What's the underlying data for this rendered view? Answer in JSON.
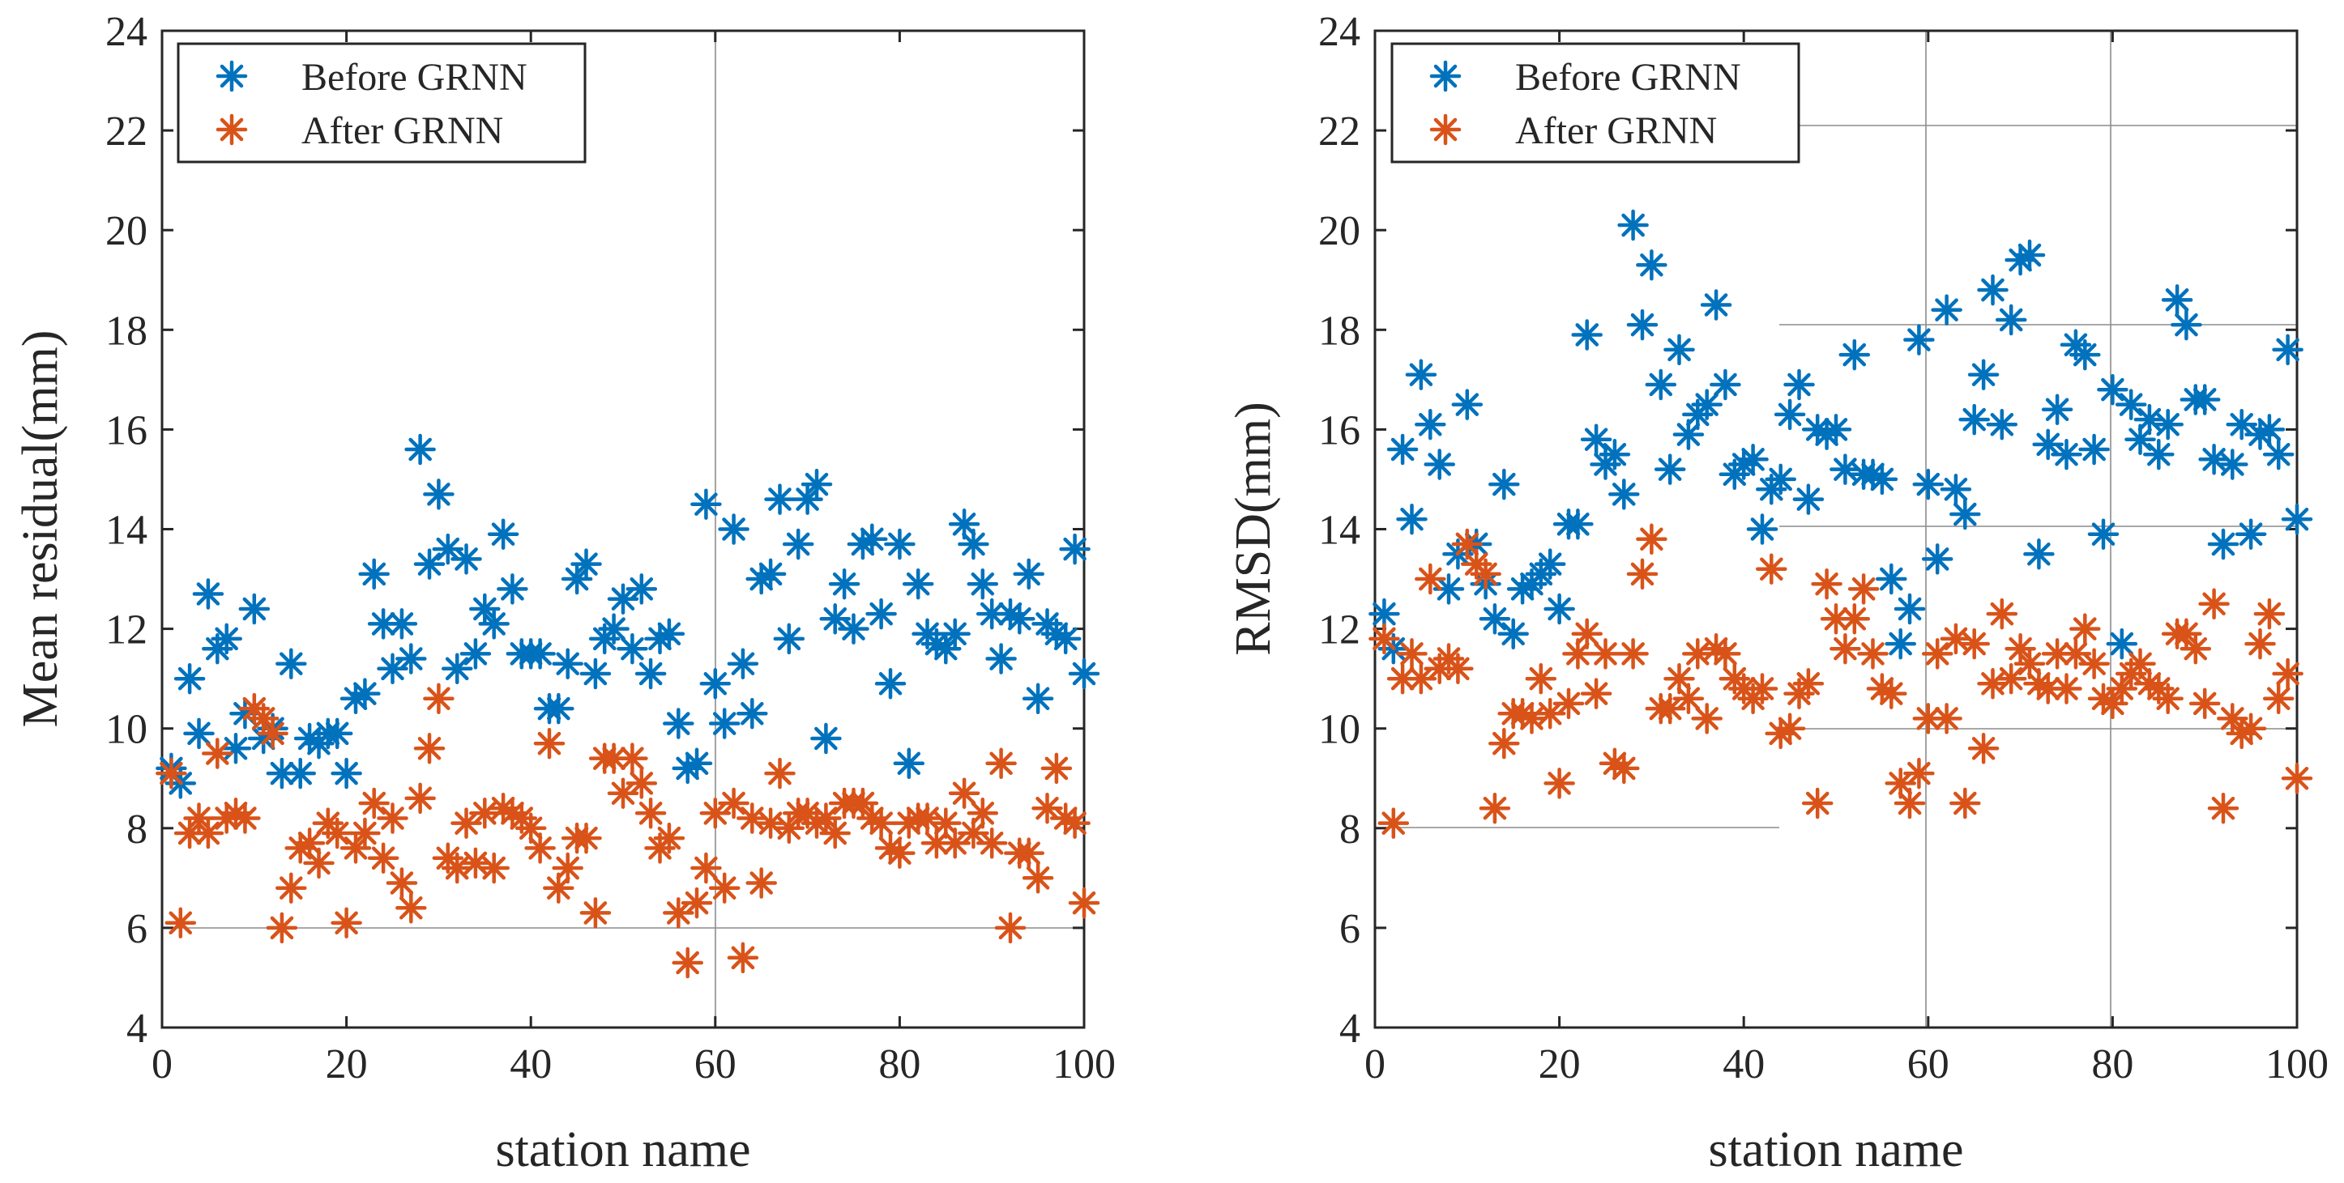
{
  "chart_data": [
    {
      "type": "scatter",
      "ylabel": "Mean residual(mm)",
      "xlabel": "station name",
      "xlim": [
        0,
        100
      ],
      "ylim": [
        4,
        24
      ],
      "xticks": [
        "0",
        "20",
        "40",
        "60",
        "80",
        "100"
      ],
      "yticks": [
        "4",
        "6",
        "8",
        "10",
        "12",
        "14",
        "16",
        "18",
        "20",
        "22",
        "24"
      ],
      "legend": {
        "position": "top-left",
        "entries": [
          "Before GRNN",
          "After GRNN"
        ]
      },
      "series": [
        {
          "name": "Before GRNN",
          "color": "#0072BD",
          "x": [
            1,
            2,
            3,
            4,
            5,
            6,
            7,
            8,
            9,
            10,
            11,
            12,
            13,
            14,
            15,
            16,
            17,
            18,
            19,
            20,
            21,
            22,
            23,
            24,
            25,
            26,
            27,
            28,
            29,
            30,
            31,
            32,
            33,
            34,
            35,
            36,
            37,
            38,
            39,
            40,
            41,
            42,
            43,
            44,
            45,
            46,
            47,
            48,
            49,
            50,
            51,
            52,
            53,
            54,
            55,
            56,
            57,
            58,
            59,
            60,
            61,
            62,
            63,
            64,
            65,
            66,
            67,
            68,
            69,
            70,
            71,
            72,
            73,
            74,
            75,
            76,
            77,
            78,
            79,
            80,
            81,
            82,
            83,
            84,
            85,
            86,
            87,
            88,
            89,
            90,
            91,
            92,
            93,
            94,
            95,
            96,
            97,
            98,
            99,
            100
          ],
          "y": [
            9.2,
            8.9,
            11.0,
            9.9,
            12.7,
            11.6,
            11.8,
            9.6,
            10.3,
            12.4,
            9.8,
            10.0,
            9.1,
            11.3,
            9.1,
            9.8,
            9.7,
            9.9,
            9.9,
            9.1,
            10.6,
            10.7,
            13.1,
            12.1,
            11.2,
            12.1,
            11.4,
            15.6,
            13.3,
            14.7,
            13.6,
            11.2,
            13.4,
            11.5,
            12.4,
            12.1,
            13.9,
            12.8,
            11.5,
            11.5,
            11.5,
            10.4,
            10.4,
            11.3,
            13.0,
            13.3,
            11.1,
            11.8,
            12.0,
            12.6,
            11.6,
            12.8,
            11.1,
            11.8,
            11.9,
            10.1,
            9.2,
            9.3,
            14.5,
            10.9,
            10.1,
            14.0,
            11.3,
            10.3,
            13.0,
            13.1,
            14.6,
            11.8,
            13.7,
            14.6,
            14.9,
            9.8,
            12.2,
            12.9,
            12.0,
            13.7,
            13.8,
            12.3,
            10.9,
            13.7,
            9.3,
            12.9,
            11.9,
            11.7,
            11.6,
            11.9,
            14.1,
            13.7,
            12.9,
            12.3,
            11.4,
            12.3,
            12.2,
            13.1,
            10.6,
            12.1,
            11.9,
            11.8,
            13.6,
            11.1
          ]
        },
        {
          "name": "After GRNN",
          "color": "#D95319",
          "x": [
            1,
            2,
            3,
            4,
            5,
            6,
            7,
            8,
            9,
            10,
            11,
            12,
            13,
            14,
            15,
            16,
            17,
            18,
            19,
            20,
            21,
            22,
            23,
            24,
            25,
            26,
            27,
            28,
            29,
            30,
            31,
            32,
            33,
            34,
            35,
            36,
            37,
            38,
            39,
            40,
            41,
            42,
            43,
            44,
            45,
            46,
            47,
            48,
            49,
            50,
            51,
            52,
            53,
            54,
            55,
            56,
            57,
            58,
            59,
            60,
            61,
            62,
            63,
            64,
            65,
            66,
            67,
            68,
            69,
            70,
            71,
            72,
            73,
            74,
            75,
            76,
            77,
            78,
            79,
            80,
            81,
            82,
            83,
            84,
            85,
            86,
            87,
            88,
            89,
            90,
            91,
            92,
            93,
            94,
            95,
            96,
            97,
            98,
            99,
            100
          ],
          "y": [
            9.1,
            6.1,
            7.9,
            8.2,
            7.9,
            9.5,
            8.2,
            8.3,
            8.2,
            10.4,
            10.2,
            9.9,
            6.0,
            6.8,
            7.6,
            7.7,
            7.3,
            8.1,
            7.9,
            6.1,
            7.6,
            7.9,
            8.5,
            7.4,
            8.2,
            6.9,
            6.4,
            8.6,
            9.6,
            10.6,
            7.4,
            7.2,
            8.1,
            7.3,
            8.3,
            7.2,
            8.4,
            8.3,
            8.2,
            8.0,
            7.6,
            9.7,
            6.8,
            7.2,
            7.8,
            7.8,
            6.3,
            9.4,
            9.4,
            8.7,
            9.4,
            8.9,
            8.3,
            7.6,
            7.8,
            6.3,
            5.3,
            6.5,
            7.2,
            8.3,
            6.8,
            8.5,
            5.4,
            8.2,
            6.9,
            8.1,
            9.1,
            8.0,
            8.3,
            8.3,
            8.1,
            8.2,
            7.9,
            8.5,
            8.5,
            8.5,
            8.2,
            8.1,
            7.6,
            7.5,
            8.1,
            8.2,
            8.2,
            7.7,
            8.1,
            7.7,
            8.7,
            7.9,
            8.3,
            7.7,
            9.3,
            6.0,
            7.5,
            7.5,
            7.0,
            8.4,
            9.2,
            8.2,
            8.1,
            6.5
          ]
        }
      ]
    },
    {
      "type": "scatter",
      "ylabel": "RMSD(mm)",
      "xlabel": "station name",
      "xlim": [
        0,
        100
      ],
      "ylim": [
        4,
        24
      ],
      "xticks": [
        "0",
        "20",
        "40",
        "60",
        "80",
        "100"
      ],
      "yticks": [
        "4",
        "6",
        "8",
        "10",
        "12",
        "14",
        "16",
        "18",
        "20",
        "22",
        "24"
      ],
      "legend": {
        "position": "top-left",
        "entries": [
          "Before GRNN",
          "After GRNN"
        ]
      },
      "series": [
        {
          "name": "Before GRNN",
          "color": "#0072BD",
          "x": [
            1,
            2,
            3,
            4,
            5,
            6,
            7,
            8,
            9,
            10,
            11,
            12,
            13,
            14,
            15,
            16,
            17,
            18,
            19,
            20,
            21,
            22,
            23,
            24,
            25,
            26,
            27,
            28,
            29,
            30,
            31,
            32,
            33,
            34,
            35,
            36,
            37,
            38,
            39,
            40,
            41,
            42,
            43,
            44,
            45,
            46,
            47,
            48,
            49,
            50,
            51,
            52,
            53,
            54,
            55,
            56,
            57,
            58,
            59,
            60,
            61,
            62,
            63,
            64,
            65,
            66,
            67,
            68,
            69,
            70,
            71,
            72,
            73,
            74,
            75,
            76,
            77,
            78,
            79,
            80,
            81,
            82,
            83,
            84,
            85,
            86,
            87,
            88,
            89,
            90,
            91,
            92,
            93,
            94,
            95,
            96,
            97,
            98,
            99,
            100
          ],
          "y": [
            12.3,
            11.6,
            15.6,
            14.2,
            17.1,
            16.1,
            15.3,
            12.8,
            13.5,
            16.5,
            13.7,
            12.9,
            12.2,
            14.9,
            11.9,
            12.8,
            12.9,
            13.1,
            13.3,
            12.4,
            14.1,
            14.1,
            17.9,
            15.8,
            15.3,
            15.5,
            14.7,
            20.1,
            18.1,
            19.3,
            16.9,
            15.2,
            17.6,
            15.9,
            16.3,
            16.5,
            18.5,
            16.9,
            15.1,
            15.3,
            15.4,
            14.0,
            14.8,
            15.0,
            16.3,
            16.9,
            14.6,
            16.0,
            15.9,
            16.0,
            15.2,
            17.5,
            15.1,
            15.1,
            15.0,
            13.0,
            11.7,
            12.4,
            17.8,
            14.9,
            13.4,
            18.4,
            14.8,
            14.3,
            16.2,
            17.1,
            18.8,
            16.1,
            18.2,
            19.4,
            19.5,
            13.5,
            15.7,
            16.4,
            15.5,
            17.7,
            17.5,
            15.6,
            13.9,
            16.8,
            11.7,
            16.5,
            15.8,
            16.2,
            15.5,
            16.1,
            18.6,
            18.1,
            16.6,
            16.6,
            15.4,
            13.7,
            15.3,
            16.1,
            13.9,
            15.9,
            16.0,
            15.5,
            17.6,
            14.2
          ]
        },
        {
          "name": "After GRNN",
          "color": "#D95319",
          "x": [
            1,
            2,
            3,
            4,
            5,
            6,
            7,
            8,
            9,
            10,
            11,
            12,
            13,
            14,
            15,
            16,
            17,
            18,
            19,
            20,
            21,
            22,
            23,
            24,
            25,
            26,
            27,
            28,
            29,
            30,
            31,
            32,
            33,
            34,
            35,
            36,
            37,
            38,
            39,
            40,
            41,
            42,
            43,
            44,
            45,
            46,
            47,
            48,
            49,
            50,
            51,
            52,
            53,
            54,
            55,
            56,
            57,
            58,
            59,
            60,
            61,
            62,
            63,
            64,
            65,
            66,
            67,
            68,
            69,
            70,
            71,
            72,
            73,
            74,
            75,
            76,
            77,
            78,
            79,
            80,
            81,
            82,
            83,
            84,
            85,
            86,
            87,
            88,
            89,
            90,
            91,
            92,
            93,
            94,
            95,
            96,
            97,
            98,
            99,
            100
          ],
          "y": [
            11.8,
            8.1,
            11.0,
            11.5,
            11.0,
            13.0,
            11.2,
            11.4,
            11.2,
            13.7,
            13.3,
            13.1,
            8.4,
            9.7,
            10.3,
            10.3,
            10.2,
            11.0,
            10.3,
            8.9,
            10.5,
            11.5,
            11.9,
            10.7,
            11.5,
            9.3,
            9.2,
            11.5,
            13.1,
            13.8,
            10.4,
            10.4,
            11.0,
            10.6,
            11.5,
            10.2,
            11.6,
            11.5,
            11.0,
            10.8,
            10.6,
            10.8,
            13.2,
            9.9,
            10.0,
            10.7,
            10.9,
            8.5,
            12.9,
            12.2,
            11.6,
            12.2,
            12.8,
            11.5,
            10.8,
            10.7,
            8.9,
            8.5,
            9.1,
            10.2,
            11.5,
            10.2,
            11.8,
            8.5,
            11.7,
            9.6,
            10.9,
            12.3,
            11.0,
            11.6,
            11.3,
            10.9,
            10.8,
            11.5,
            10.8,
            11.5,
            12.0,
            11.3,
            10.6,
            10.5,
            10.8,
            11.1,
            11.3,
            10.9,
            10.8,
            10.6,
            11.9,
            11.9,
            11.6,
            10.5,
            12.5,
            8.4,
            10.2,
            9.9,
            10.0,
            11.7,
            12.3,
            10.6,
            11.1,
            9.0
          ]
        }
      ]
    }
  ]
}
